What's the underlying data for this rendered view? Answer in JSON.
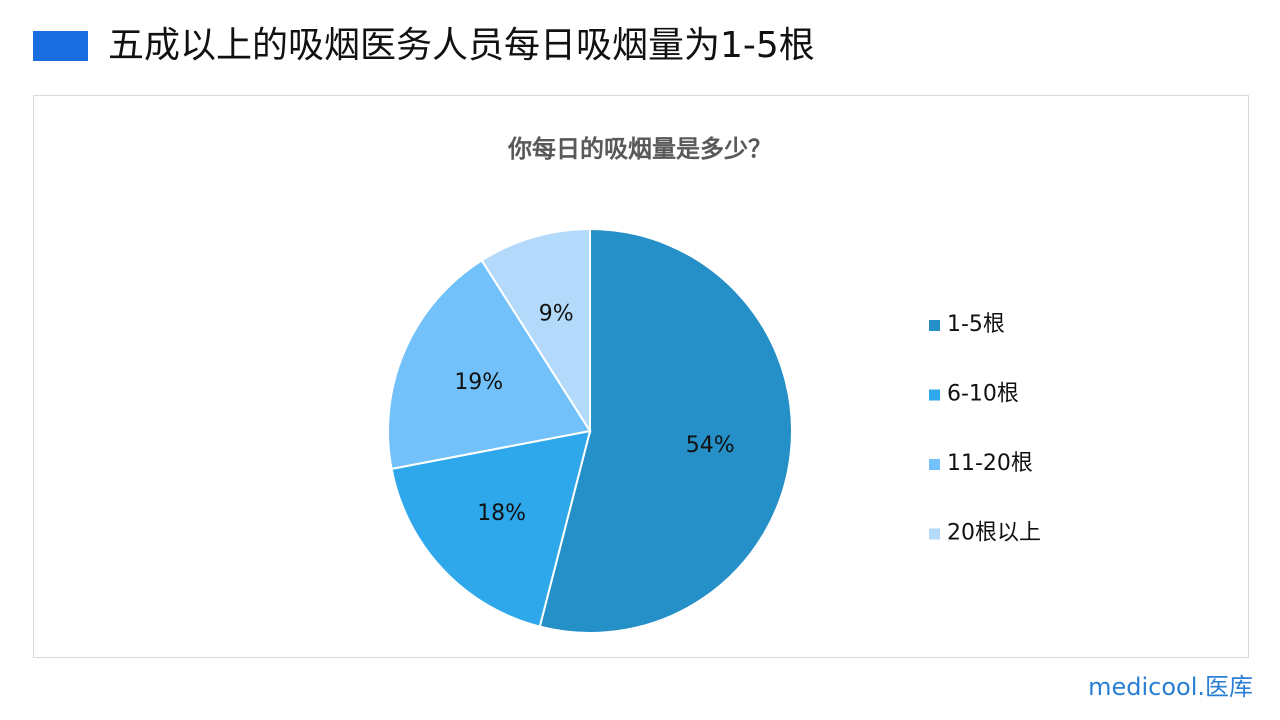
{
  "header": {
    "title": "五成以上的吸烟医务人员每日吸烟量为1-5根"
  },
  "chart_data": {
    "type": "pie",
    "title": "你每日的吸烟量是多少？",
    "categories": [
      "1-5根",
      "6-10根",
      "11-20根",
      "20根以上"
    ],
    "values": [
      54,
      18,
      19,
      9
    ],
    "value_labels": [
      "54%",
      "18%",
      "19%",
      "9%"
    ],
    "colors": [
      "#258fc8",
      "#2ea7eb",
      "#73c1fa",
      "#b3d9fb"
    ],
    "legend": "right"
  },
  "footer": {
    "logo": "medicool.医库"
  }
}
